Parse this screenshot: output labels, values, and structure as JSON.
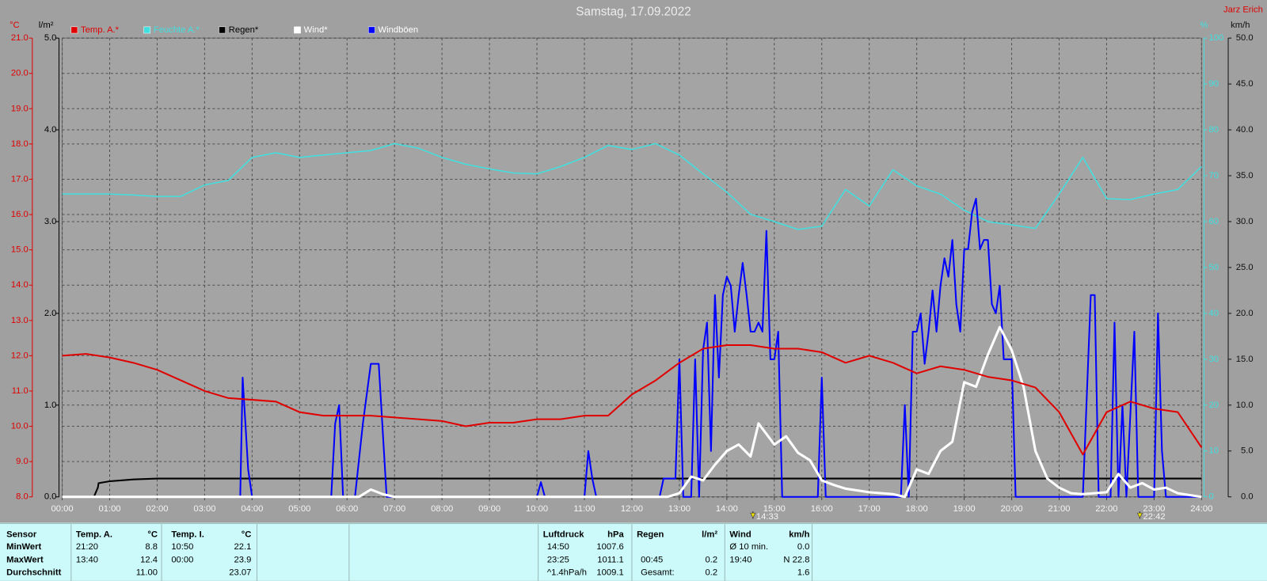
{
  "chart_data": {
    "type": "line",
    "title": "Samstag, 17.09.2022",
    "author": "Jarz Erich",
    "grid": true,
    "legend": "top-left",
    "xlim": [
      0,
      1440
    ],
    "xticks": [
      {
        "value": 0,
        "label": "00:00"
      },
      {
        "value": 60,
        "label": "01:00"
      },
      {
        "value": 120,
        "label": "02:00"
      },
      {
        "value": 180,
        "label": "03:00"
      },
      {
        "value": 240,
        "label": "04:00"
      },
      {
        "value": 300,
        "label": "05:00"
      },
      {
        "value": 360,
        "label": "06:00"
      },
      {
        "value": 420,
        "label": "07:00"
      },
      {
        "value": 480,
        "label": "08:00"
      },
      {
        "value": 540,
        "label": "09:00"
      },
      {
        "value": 600,
        "label": "10:00"
      },
      {
        "value": 660,
        "label": "11:00"
      },
      {
        "value": 720,
        "label": "12:00"
      },
      {
        "value": 780,
        "label": "13:00"
      },
      {
        "value": 840,
        "label": "14:00"
      },
      {
        "value": 900,
        "label": "15:00"
      },
      {
        "value": 960,
        "label": "16:00"
      },
      {
        "value": 1020,
        "label": "17:00"
      },
      {
        "value": 1080,
        "label": "18:00"
      },
      {
        "value": 1140,
        "label": "19:00"
      },
      {
        "value": 1200,
        "label": "20:00"
      },
      {
        "value": 1260,
        "label": "21:00"
      },
      {
        "value": 1320,
        "label": "22:00"
      },
      {
        "value": 1380,
        "label": "23:00"
      },
      {
        "value": 1440,
        "label": "24:00"
      }
    ],
    "axes": [
      {
        "label": "°C",
        "color": "#e00000",
        "lim": [
          8,
          21
        ],
        "ticks": [
          {
            "value": 8,
            "label": "8.0"
          },
          {
            "value": 9,
            "label": "9.0"
          },
          {
            "value": 10,
            "label": "10.0"
          },
          {
            "value": 11,
            "label": "11.0"
          },
          {
            "value": 12,
            "label": "12.0"
          },
          {
            "value": 13,
            "label": "13.0"
          },
          {
            "value": 14,
            "label": "14.0"
          },
          {
            "value": 15,
            "label": "15.0"
          },
          {
            "value": 16,
            "label": "16.0"
          },
          {
            "value": 17,
            "label": "17.0"
          },
          {
            "value": 18,
            "label": "18.0"
          },
          {
            "value": 19,
            "label": "19.0"
          },
          {
            "value": 20,
            "label": "20.0"
          },
          {
            "value": 21,
            "label": "21.0"
          }
        ]
      },
      {
        "label": "l/m²",
        "color": "#000000",
        "lim": [
          0,
          5
        ],
        "ticks": [
          {
            "value": 0,
            "label": "0.0"
          },
          {
            "value": 1,
            "label": "1.0"
          },
          {
            "value": 2,
            "label": "2.0"
          },
          {
            "value": 3,
            "label": "3.0"
          },
          {
            "value": 4,
            "label": "4.0"
          },
          {
            "value": 5,
            "label": "5.0"
          }
        ]
      },
      {
        "label": "%",
        "color": "#40e0e0",
        "lim": [
          0,
          100
        ],
        "ticks": [
          0,
          10,
          20,
          30,
          40,
          50,
          60,
          70,
          80,
          90,
          100
        ]
      },
      {
        "label": "km/h",
        "color": "#101010",
        "lim": [
          0,
          50
        ],
        "ticks": [
          {
            "value": 0,
            "label": "0.0"
          },
          {
            "value": 5,
            "label": "5.0"
          },
          {
            "value": 10,
            "label": "10.0"
          },
          {
            "value": 15,
            "label": "15.0"
          },
          {
            "value": 20,
            "label": "20.0"
          },
          {
            "value": 25,
            "label": "25.0"
          },
          {
            "value": 30,
            "label": "30.0"
          },
          {
            "value": 35,
            "label": "35.0"
          },
          {
            "value": 40,
            "label": "40.0"
          },
          {
            "value": 45,
            "label": "45.0"
          },
          {
            "value": 50,
            "label": "50.0"
          }
        ]
      }
    ],
    "series": [
      {
        "name": "Temp. A.*",
        "color": "#e00000",
        "axis": 0,
        "width": 2,
        "x": [
          0,
          30,
          60,
          90,
          120,
          150,
          180,
          210,
          240,
          270,
          300,
          330,
          360,
          390,
          420,
          450,
          480,
          510,
          540,
          570,
          600,
          630,
          660,
          690,
          720,
          750,
          780,
          810,
          840,
          870,
          900,
          930,
          960,
          990,
          1020,
          1050,
          1080,
          1110,
          1140,
          1170,
          1200,
          1230,
          1260,
          1290,
          1320,
          1350,
          1380,
          1410,
          1440
        ],
        "values": [
          12.0,
          12.05,
          11.95,
          11.8,
          11.6,
          11.3,
          11.0,
          10.8,
          10.75,
          10.7,
          10.4,
          10.3,
          10.3,
          10.3,
          10.25,
          10.2,
          10.15,
          10.0,
          10.1,
          10.1,
          10.2,
          10.2,
          10.3,
          10.3,
          10.9,
          11.3,
          11.8,
          12.2,
          12.3,
          12.3,
          12.2,
          12.2,
          12.1,
          11.8,
          12.0,
          11.8,
          11.5,
          11.7,
          11.6,
          11.4,
          11.3,
          11.1,
          10.4,
          9.2,
          10.4,
          10.7,
          10.5,
          10.4,
          9.4
        ]
      },
      {
        "name": "Feuchte A.*",
        "color": "#40e0e0",
        "axis": 2,
        "width": 1.5,
        "x": [
          0,
          30,
          60,
          90,
          120,
          150,
          180,
          210,
          240,
          270,
          300,
          330,
          360,
          390,
          420,
          450,
          480,
          510,
          540,
          570,
          600,
          630,
          660,
          690,
          720,
          750,
          780,
          810,
          840,
          870,
          900,
          930,
          960,
          990,
          1020,
          1050,
          1080,
          1110,
          1140,
          1170,
          1200,
          1230,
          1260,
          1290,
          1320,
          1350,
          1380,
          1410,
          1440
        ],
        "values": [
          66,
          66,
          66,
          65.8,
          65.5,
          65.5,
          68,
          69,
          74,
          75,
          74,
          74.5,
          75,
          75.5,
          77,
          76,
          74,
          72.5,
          71.5,
          70.6,
          70.4,
          72,
          74,
          76.6,
          75.7,
          77,
          74.5,
          70.4,
          66.4,
          61.6,
          60,
          58.3,
          59,
          67,
          63.4,
          71.3,
          67.8,
          66,
          62.5,
          60,
          59.3,
          58.5,
          66,
          74,
          65,
          64.8,
          66,
          67,
          72
        ]
      },
      {
        "name": "Regen*",
        "color": "#000000",
        "axis": 1,
        "width": 2,
        "x": [
          0,
          40,
          45,
          46,
          60,
          90,
          120,
          1440
        ],
        "values": [
          0,
          0,
          0.1,
          0.15,
          0.17,
          0.19,
          0.2,
          0.2
        ]
      },
      {
        "name": "Wind*",
        "color": "#ffffff",
        "axis": 3,
        "width": 3,
        "x": [
          0,
          375,
          390,
          405,
          420,
          765,
          780,
          795,
          810,
          825,
          840,
          855,
          870,
          880,
          900,
          915,
          930,
          945,
          960,
          975,
          990,
          1020,
          1050,
          1065,
          1080,
          1095,
          1110,
          1125,
          1140,
          1155,
          1170,
          1185,
          1200,
          1215,
          1230,
          1245,
          1260,
          1275,
          1290,
          1320,
          1335,
          1350,
          1365,
          1380,
          1395,
          1410,
          1440
        ],
        "values": [
          0,
          0,
          0.8,
          0.3,
          0,
          0,
          0.4,
          2.2,
          1.8,
          3.5,
          5,
          5.7,
          4.4,
          8,
          5.7,
          6.6,
          4.8,
          4,
          1.8,
          1.3,
          0.9,
          0.5,
          0.3,
          0,
          3,
          2.5,
          5,
          6,
          12.5,
          12,
          15.5,
          18.5,
          16,
          12,
          5,
          2,
          1,
          0.4,
          0.3,
          0.5,
          2.5,
          1,
          1.5,
          0.8,
          1,
          0.4,
          0
        ]
      },
      {
        "name": "Windböen",
        "color": "#0000ff",
        "label_color": "#ffffff",
        "axis": 3,
        "width": 2,
        "x": [
          0,
          225,
          228,
          235,
          240,
          340,
          345,
          350,
          355,
          370,
          380,
          390,
          400,
          410,
          600,
          605,
          610,
          660,
          665,
          670,
          675,
          755,
          760,
          775,
          780,
          785,
          795,
          800,
          805,
          810,
          815,
          820,
          825,
          830,
          835,
          840,
          845,
          850,
          855,
          860,
          865,
          870,
          875,
          880,
          885,
          890,
          895,
          900,
          905,
          910,
          955,
          960,
          965,
          1060,
          1065,
          1070,
          1075,
          1080,
          1085,
          1090,
          1095,
          1100,
          1105,
          1110,
          1115,
          1120,
          1125,
          1130,
          1135,
          1140,
          1145,
          1150,
          1155,
          1160,
          1165,
          1170,
          1175,
          1180,
          1185,
          1190,
          1200,
          1205,
          1290,
          1300,
          1305,
          1310,
          1325,
          1330,
          1335,
          1340,
          1345,
          1355,
          1360,
          1380,
          1385,
          1390,
          1395,
          1440
        ],
        "values": [
          0,
          0,
          13,
          3,
          0,
          0,
          8,
          10,
          0,
          0,
          8,
          14.5,
          14.5,
          0,
          0,
          1.6,
          0,
          0,
          5,
          2,
          0,
          0,
          2,
          2,
          15,
          0,
          0,
          15,
          0,
          16,
          19,
          5,
          22,
          13,
          22,
          24,
          23,
          18,
          22,
          25.5,
          22,
          18,
          18,
          19,
          18,
          29,
          15,
          15,
          18,
          0,
          0,
          13,
          0,
          0,
          10,
          0,
          18,
          18,
          20,
          14.5,
          18,
          22.5,
          18,
          23,
          26,
          24,
          28,
          21,
          18,
          27,
          27,
          31,
          32.5,
          27,
          28,
          28,
          21,
          20,
          23,
          15,
          15,
          0,
          0,
          22,
          22,
          0,
          0,
          19,
          0,
          10,
          0,
          18,
          0,
          0,
          20,
          5,
          0,
          0
        ]
      }
    ],
    "annotations": [
      {
        "x": 873,
        "label": "14:33"
      },
      {
        "x": 1362,
        "label": "22:42"
      }
    ]
  },
  "stats": {
    "panels": [
      {
        "header": [
          "Sensor",
          "Temp. A.",
          "°C",
          "Temp. I.",
          "°C"
        ],
        "rows": [
          [
            "MinWert",
            "21:20",
            "8.8",
            "10:50",
            "22.1"
          ],
          [
            "MaxWert",
            "13:40",
            "12.4",
            "00:00",
            "23.9"
          ],
          [
            "Durchschnitt",
            null,
            "11.00",
            null,
            "23.07"
          ]
        ]
      },
      {
        "header": [
          "Luftdruck",
          "hPa",
          "Regen",
          "l/m²",
          "Wind",
          "km/h"
        ],
        "rows": [
          [
            "14:50",
            "1007.6",
            null,
            null,
            "Ø 10 min.",
            "0.0"
          ],
          [
            "23:25",
            "1011.1",
            "00:45",
            "0.2",
            "19:40",
            "N 22.8"
          ],
          [
            "^1.4hPa/h",
            "1009.1",
            "Gesamt:",
            "0.2",
            null,
            "1.6"
          ]
        ]
      }
    ]
  }
}
